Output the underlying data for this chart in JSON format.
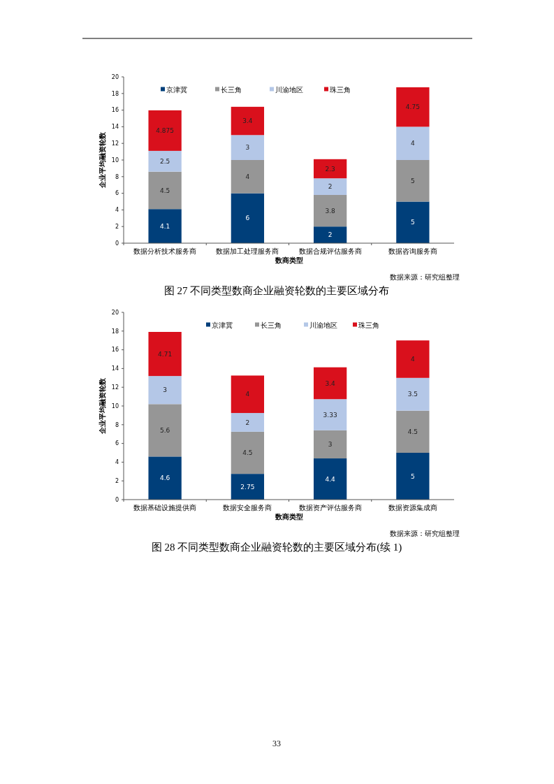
{
  "chart_data": [
    {
      "type": "bar",
      "stacked": true,
      "title": "图 27  不同类型数商企业融资轮数的主要区域分布",
      "xlabel": "数商类型",
      "ylabel": "企业平均融资轮数",
      "categories": [
        "数据分析技术服务商",
        "数据加工处理服务商",
        "数据合规评估服务商",
        "数据咨询服务商"
      ],
      "series": [
        {
          "name": "京津冀",
          "color": "#003f7a",
          "values": [
            4.1,
            6,
            2,
            5
          ]
        },
        {
          "name": "长三角",
          "color": "#969696",
          "values": [
            4.5,
            4,
            3.8,
            5
          ]
        },
        {
          "name": "川渝地区",
          "color": "#b4c7e7",
          "values": [
            2.5,
            3,
            2,
            4
          ]
        },
        {
          "name": "珠三角",
          "color": "#d9101c",
          "values": [
            4.875,
            3.4,
            2.3,
            4.75
          ]
        }
      ],
      "ylim": [
        0,
        20
      ],
      "yticks": [
        0,
        2,
        4,
        6,
        8,
        10,
        12,
        14,
        16,
        18,
        20
      ],
      "data_labels": true,
      "legend": "top",
      "grid": false,
      "annotations": [
        "数据来源：研究组整理"
      ]
    },
    {
      "type": "bar",
      "stacked": true,
      "title": "图 28  不同类型数商企业融资轮数的主要区域分布(续 1)",
      "xlabel": "数商类型",
      "ylabel": "企业平均融资轮数",
      "categories": [
        "数据基础设施提供商",
        "数据安全服务商",
        "数据资产评估服务商",
        "数据资源集成商"
      ],
      "series": [
        {
          "name": "京津冀",
          "color": "#003f7a",
          "values": [
            4.6,
            2.75,
            4.4,
            5
          ]
        },
        {
          "name": "长三角",
          "color": "#969696",
          "values": [
            5.6,
            4.5,
            3,
            4.5
          ]
        },
        {
          "name": "川渝地区",
          "color": "#b4c7e7",
          "values": [
            3,
            2,
            3.33,
            3.5
          ]
        },
        {
          "name": "珠三角",
          "color": "#d9101c",
          "values": [
            4.71,
            4,
            3.4,
            4
          ]
        }
      ],
      "ylim": [
        0,
        20
      ],
      "yticks": [
        0,
        2,
        4,
        6,
        8,
        10,
        12,
        14,
        16,
        18,
        20
      ],
      "data_labels": true,
      "legend": "top",
      "grid": false,
      "annotations": [
        "数据来源：研究组整理",
        "33"
      ]
    }
  ]
}
